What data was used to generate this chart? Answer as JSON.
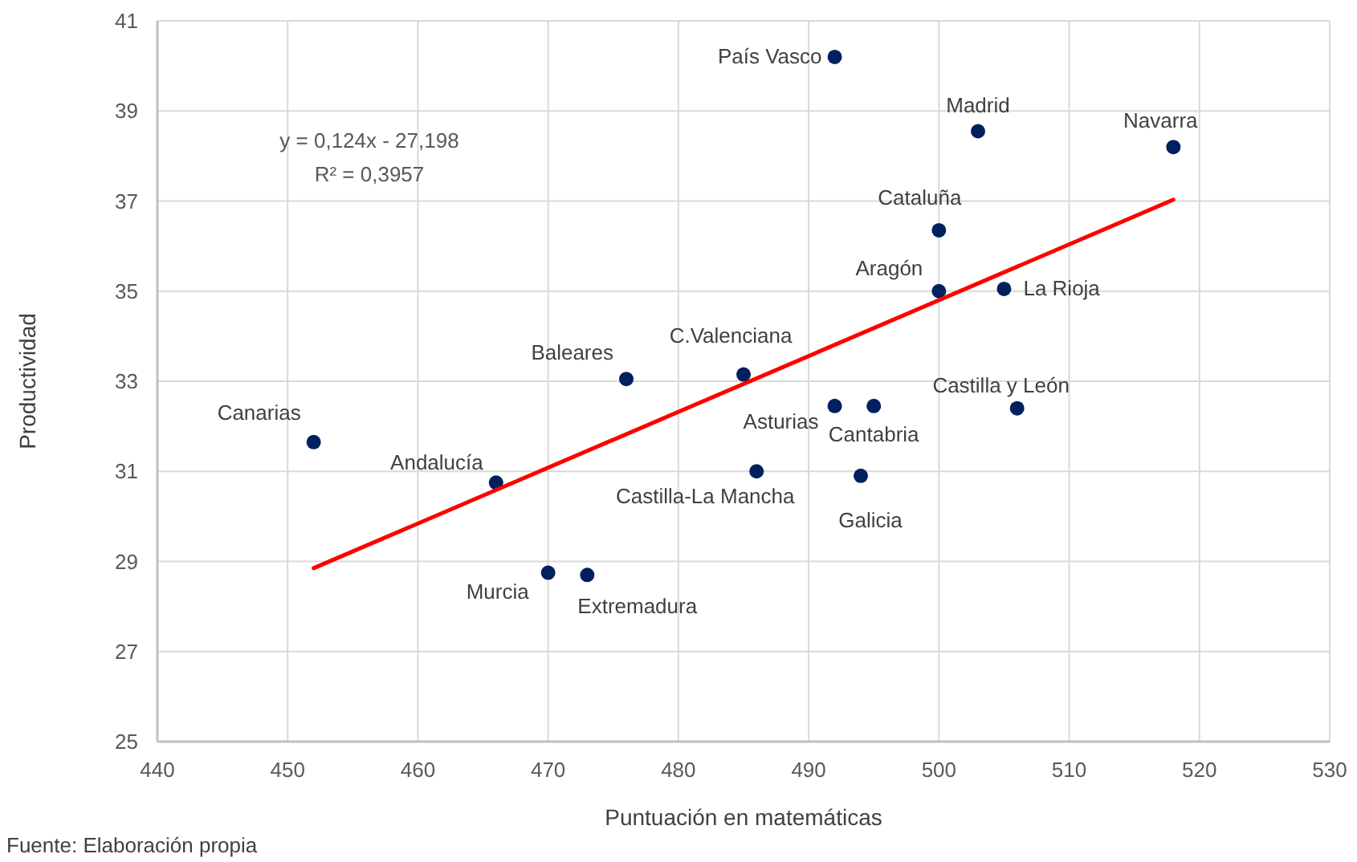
{
  "chart_data": {
    "type": "scatter",
    "xlabel": "Puntuación en matemáticas",
    "ylabel": "Productividad",
    "xlim": [
      440,
      530
    ],
    "xticks": [
      440,
      450,
      460,
      470,
      480,
      490,
      500,
      510,
      520,
      530
    ],
    "ylim": [
      25,
      41
    ],
    "yticks": [
      25,
      27,
      29,
      31,
      33,
      35,
      37,
      39,
      41
    ],
    "grid": true,
    "marker": "circle",
    "series": [
      {
        "color": "#002060",
        "x": [
          492,
          503,
          518,
          500,
          500,
          505,
          485,
          476,
          492,
          495,
          506,
          452,
          466,
          486,
          494,
          470,
          473
        ],
        "values": [
          40.2,
          38.55,
          38.2,
          36.35,
          35.0,
          35.05,
          33.15,
          33.05,
          32.45,
          32.45,
          32.4,
          31.65,
          30.75,
          31.0,
          30.9,
          28.75,
          28.7
        ]
      },
      {
        "type": "line",
        "marker": "none",
        "color": "#ff0000",
        "x": [
          452,
          518
        ],
        "values": [
          28.85,
          37.03
        ]
      }
    ],
    "annotations": [
      "y = 0,124x - 27,198",
      "R² = 0,3957",
      "Fuente: Elaboración propia",
      {
        "text": "País Vasco",
        "x": 492,
        "y": 40.2
      },
      {
        "text": "Madrid",
        "x": 503,
        "y": 38.55
      },
      {
        "text": "Navarra",
        "x": 518,
        "y": 38.2
      },
      {
        "text": "Cataluña",
        "x": 500,
        "y": 36.35
      },
      {
        "text": "Aragón",
        "x": 500,
        "y": 35.0
      },
      {
        "text": "La Rioja",
        "x": 505,
        "y": 35.05
      },
      {
        "text": "C.Valenciana",
        "x": 485,
        "y": 33.15
      },
      {
        "text": "Baleares",
        "x": 476,
        "y": 33.05
      },
      {
        "text": "Asturias",
        "x": 492,
        "y": 32.45
      },
      {
        "text": "Cantabria",
        "x": 495,
        "y": 32.45
      },
      {
        "text": "Castilla y León",
        "x": 506,
        "y": 32.4
      },
      {
        "text": "Canarias",
        "x": 452,
        "y": 31.65
      },
      {
        "text": "Andalucía",
        "x": 466,
        "y": 30.75
      },
      {
        "text": "Castilla-La Mancha",
        "x": 486,
        "y": 31.0
      },
      {
        "text": "Galicia",
        "x": 494,
        "y": 30.9
      },
      {
        "text": "Murcia",
        "x": 470,
        "y": 28.75
      },
      {
        "text": "Extremadura",
        "x": 473,
        "y": 28.7
      }
    ]
  }
}
